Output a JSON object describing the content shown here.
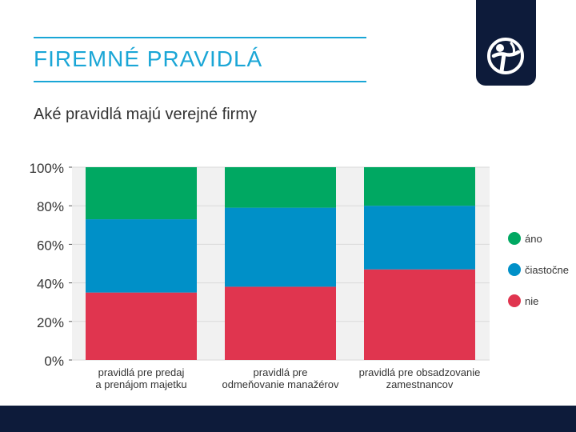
{
  "slide": {
    "title": "FIREMNÉ PRAVIDLÁ",
    "subtitle": "Aké pravidlá majú verejné firmy"
  },
  "logo": {
    "icon": "transparency-international-logo"
  },
  "colors": {
    "accent": "#1aa6d6",
    "navy": "#0d1b3a",
    "ano": "#00a862",
    "ciastocne": "#0090c8",
    "nie": "#e0354f",
    "plot_background": "#f1f1f1"
  },
  "chart_data": {
    "type": "bar",
    "stacked": true,
    "categories": [
      [
        "pravidlá pre predaj",
        "a prenájom majetku"
      ],
      [
        "pravidlá pre",
        "odmeňovanie manažérov"
      ],
      [
        "pravidlá pre obsadzovanie",
        "zamestnancov"
      ]
    ],
    "series": [
      {
        "name": "nie",
        "color": "#e0354f",
        "values": [
          35,
          38,
          47
        ]
      },
      {
        "name": "čiastočne",
        "color": "#0090c8",
        "values": [
          38,
          41,
          33
        ]
      },
      {
        "name": "áno",
        "color": "#00a862",
        "values": [
          27,
          21,
          20
        ]
      }
    ],
    "ylim": [
      0,
      100
    ],
    "yticks": [
      "0%",
      "20%",
      "40%",
      "60%",
      "80%",
      "100%"
    ],
    "legend": [
      {
        "label": "áno",
        "color": "#00a862"
      },
      {
        "label": "čiastočne",
        "color": "#0090c8"
      },
      {
        "label": "nie",
        "color": "#e0354f"
      }
    ],
    "legend_position": "right",
    "grid": true
  }
}
